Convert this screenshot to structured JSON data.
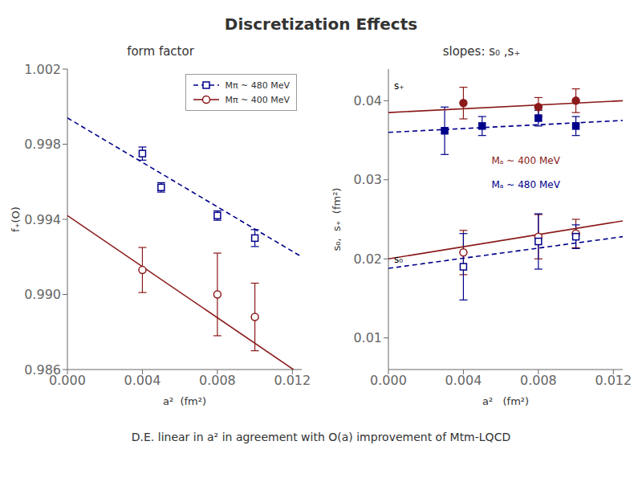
{
  "title": "Discretization Effects",
  "annotations": [
    {
      "text": "D.E. linear in a² in agreement with O(a) improvement of Mtm-LQCD"
    }
  ],
  "chart_data": [
    {
      "type": "scatter",
      "title": "form factor",
      "x_label": "a²  (fm²)",
      "y_label": "f₊(O)",
      "xlim": [
        0.0,
        0.0125
      ],
      "ylim": [
        0.986,
        1.002
      ],
      "xticks": [
        {
          "value": 0.0,
          "label": "0.000"
        },
        0.004,
        0.008,
        0.012
      ],
      "yticks": [
        0.986,
        {
          "value": 0.99,
          "label": "0.990"
        },
        0.994,
        0.998,
        1.002
      ],
      "grid": false,
      "legend": "upper right",
      "series": [
        {
          "name": "Mπ ~ 480 MeV",
          "color": "#00008B",
          "marker": "square_open",
          "line_style": "dashed",
          "x": [
            0.004,
            0.005,
            0.008,
            0.01
          ],
          "values": [
            0.9975,
            0.9957,
            0.9942,
            0.993
          ],
          "errors": [
            0.00035,
            0.00025,
            0.00025,
            0.00045
          ],
          "fit_x": [
            0.0,
            0.0125
          ],
          "fit_values": [
            0.9994,
            0.992
          ]
        },
        {
          "name": "Mπ ~ 400 MeV",
          "color": "#8B1A1A",
          "marker": "circle_open",
          "line_style": "solid",
          "x": [
            0.004,
            0.008,
            0.01
          ],
          "values": [
            0.9913,
            0.99,
            0.9888
          ],
          "errors": [
            0.0012,
            0.0022,
            0.0018
          ],
          "fit_x": [
            0.0,
            0.0125
          ],
          "fit_values": [
            0.9942,
            0.9857
          ]
        }
      ]
    },
    {
      "type": "scatter",
      "title": "slopes: s₀ ,s₊",
      "x_label": "a²   (fm²)",
      "y_label": "s₀,  s₊  (fm²)",
      "xlim": [
        0.0,
        0.0125
      ],
      "ylim": [
        0.006,
        0.044
      ],
      "xticks": [
        {
          "value": 0.0,
          "label": "0.000"
        },
        0.004,
        0.008,
        0.012
      ],
      "yticks": [
        0.01,
        0.02,
        0.03,
        0.04
      ],
      "grid": false,
      "series": [
        {
          "color": "#8B1A1A",
          "marker": "circle",
          "line_style": "solid",
          "x": [
            0.004,
            0.008,
            0.01
          ],
          "values": [
            0.0397,
            0.0392,
            0.04
          ],
          "errors": [
            0.002,
            0.0012,
            0.0015
          ],
          "fit_x": [
            0.0,
            0.0125
          ],
          "fit_values": [
            0.0385,
            0.04
          ]
        },
        {
          "color": "#00008B",
          "marker": "square",
          "line_style": "dashed",
          "x": [
            0.003,
            0.005,
            0.008,
            0.01
          ],
          "values": [
            0.0362,
            0.0368,
            0.0378,
            0.0368
          ],
          "errors": [
            0.003,
            0.0012,
            0.001,
            0.0012
          ],
          "fit_x": [
            0.0,
            0.0125
          ],
          "fit_values": [
            0.036,
            0.0375
          ]
        },
        {
          "color": "#8B1A1A",
          "marker": "circle_open",
          "line_style": "solid",
          "x": [
            0.004,
            0.008,
            0.01
          ],
          "values": [
            0.0208,
            0.0228,
            0.0232
          ],
          "errors": [
            0.0028,
            0.0028,
            0.0018
          ],
          "fit_x": [
            0.0,
            0.0125
          ],
          "fit_values": [
            0.02,
            0.0248
          ]
        },
        {
          "color": "#00008B",
          "marker": "square_open",
          "line_style": "dashed",
          "x": [
            0.004,
            0.008,
            0.01
          ],
          "values": [
            0.019,
            0.0222,
            0.0228
          ],
          "errors": [
            0.0042,
            0.0035,
            0.0015
          ],
          "fit_x": [
            0.0,
            0.0125
          ],
          "fit_values": [
            0.0188,
            0.0228
          ]
        }
      ],
      "annotations": [
        {
          "text": "s₊",
          "x": 0.0003,
          "y": 0.0415
        },
        {
          "text": "s₀",
          "x": 0.0003,
          "y": 0.0195
        },
        {
          "text": "Mₐ ~ 400 MeV",
          "x": 0.0055,
          "y": 0.032,
          "color": "#8B1A1A"
        },
        {
          "text": "Mₐ ~ 480 MeV",
          "x": 0.0055,
          "y": 0.029,
          "color": "#00008B"
        }
      ]
    }
  ]
}
